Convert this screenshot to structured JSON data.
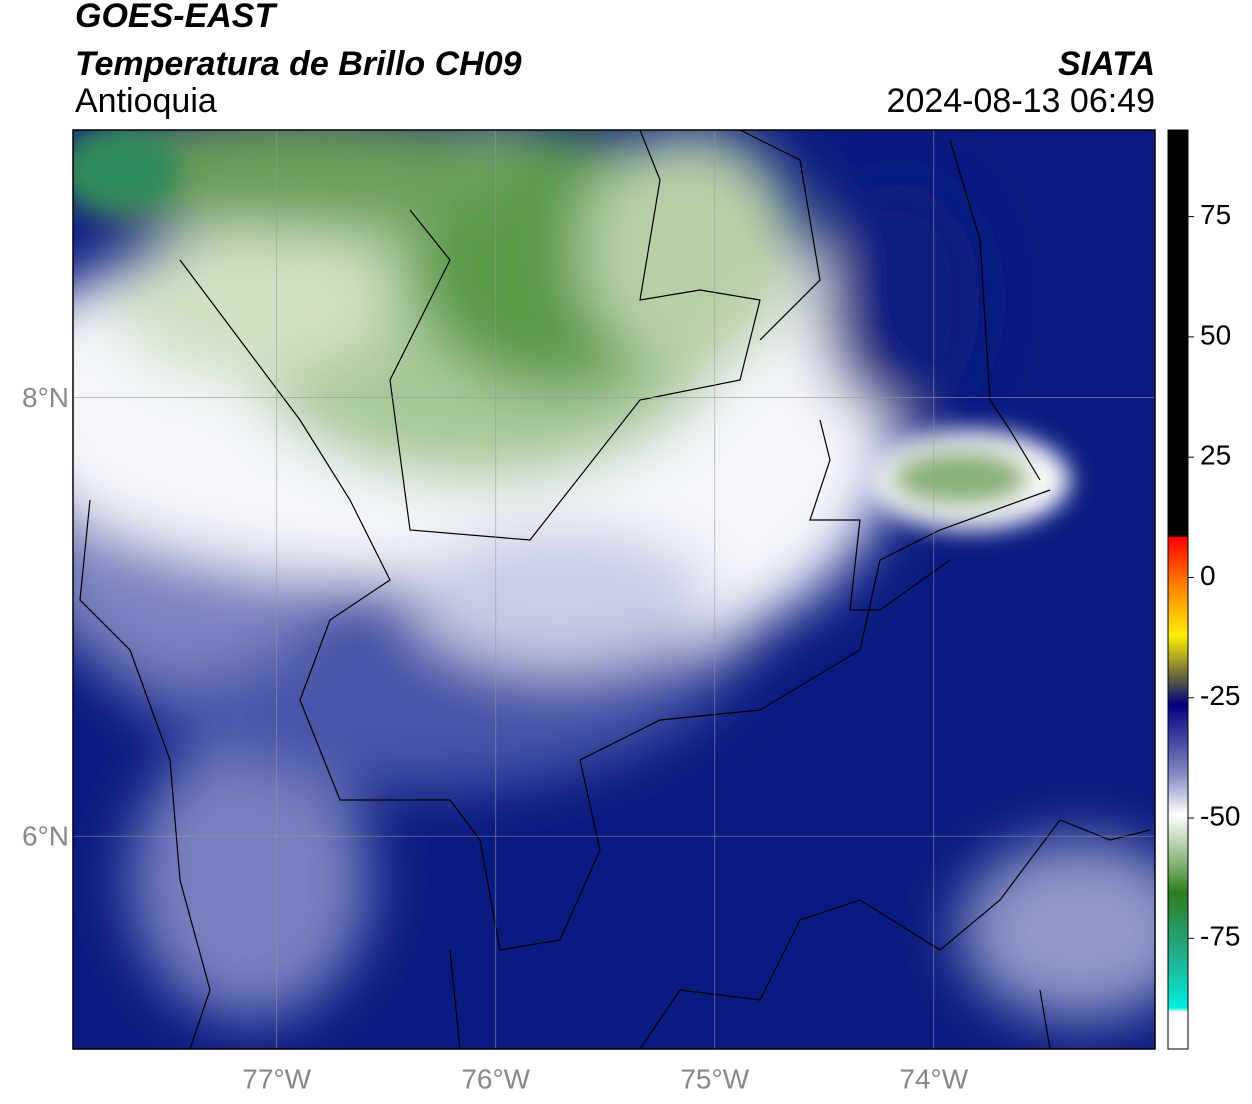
{
  "header": {
    "title": "GOES-EAST",
    "subtitle": "Temperatura de Brillo CH09",
    "region": "Antioquia",
    "source": "SIATA",
    "datetime": "2024-08-13 06:49"
  },
  "map": {
    "xlim": [
      -77.93,
      -72.99
    ],
    "ylim": [
      5.03,
      9.22
    ],
    "xticks": [
      {
        "value": -77,
        "label": "77°W"
      },
      {
        "value": -76,
        "label": "76°W"
      },
      {
        "value": -75,
        "label": "75°W"
      },
      {
        "value": -74,
        "label": "74°W"
      }
    ],
    "yticks": [
      {
        "value": 8,
        "label": "8°N"
      },
      {
        "value": 6,
        "label": "6°N"
      }
    ],
    "grid": true
  },
  "colorbar": {
    "clim": [
      -98,
      93
    ],
    "ticks": [
      75,
      50,
      25,
      0,
      -25,
      -50,
      -75
    ]
  }
}
